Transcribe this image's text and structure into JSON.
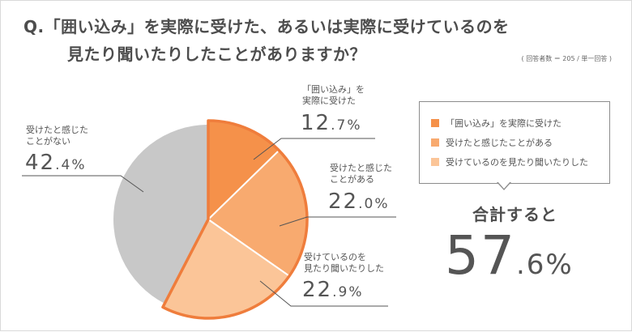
{
  "question": {
    "line1": "Q.「囲い込み」を実際に受けた、あるいは実際に受けているのを",
    "line2": "見たり聞いたりしたことがありますか？",
    "respondents": "( 回答者数 ＝ 205 / 単一回答 )"
  },
  "chart_data": {
    "type": "pie",
    "slices": [
      {
        "label_line1": "「囲い込み」を",
        "label_line2": "実際に受けた",
        "value": 12.7,
        "int": "12",
        "dec": ".7%",
        "color": "#f5914a"
      },
      {
        "label_line1": "受けたと感じた",
        "label_line2": "ことがある",
        "value": 22.0,
        "int": "22",
        "dec": ".0%",
        "color": "#f8aa6f"
      },
      {
        "label_line1": "受けているのを",
        "label_line2": "見たり聞いたりした",
        "value": 22.9,
        "int": "22",
        "dec": ".9%",
        "color": "#fbc598"
      },
      {
        "label_line1": "受けたと感じた",
        "label_line2": "ことがない",
        "value": 42.4,
        "int": "42",
        "dec": ".4%",
        "color": "#c8c8c8"
      }
    ],
    "highlight_color": "#ef7d3c",
    "legend": [
      {
        "label": "「囲い込み」を実際に受けた",
        "color": "#f5914a"
      },
      {
        "label": "受けたと感じたことがある",
        "color": "#f8aa6f"
      },
      {
        "label": "受けているのを見たり聞いたりした",
        "color": "#fbc598"
      }
    ]
  },
  "total": {
    "label": "合計すると",
    "int": "57",
    "dec": ".6%",
    "value": 57.6
  }
}
